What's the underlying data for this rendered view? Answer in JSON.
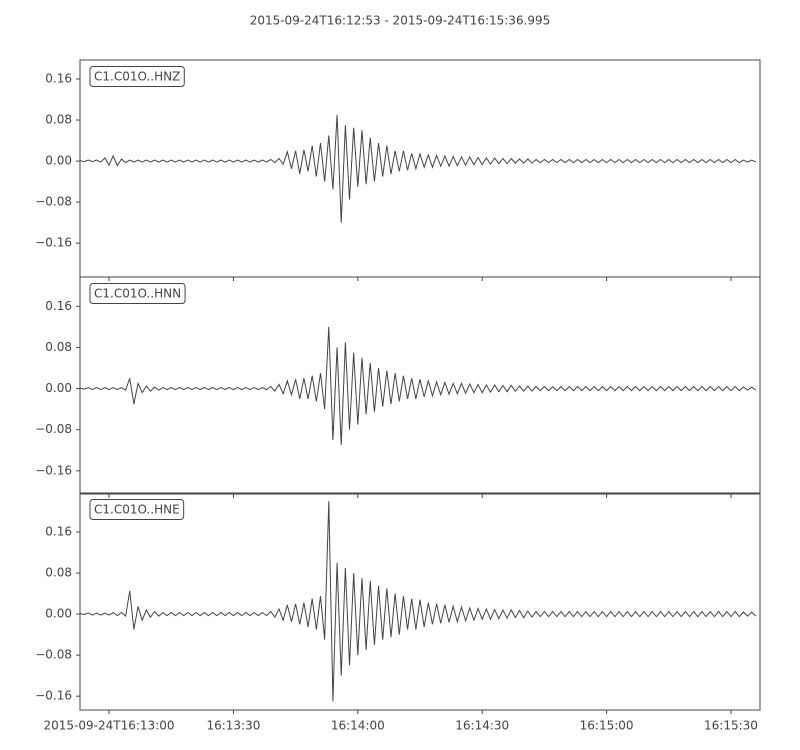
{
  "chart_data": {
    "type": "line",
    "title": "2015-09-24T16:12:53  -  2015-09-24T16:15:36.995",
    "color": "#444444",
    "xlim": [
      0,
      163.995
    ],
    "xticks": [
      {
        "value": 7,
        "label": "2015-09-24T16:13:00"
      },
      {
        "value": 37,
        "label": "16:13:30"
      },
      {
        "value": 67,
        "label": "16:14:00"
      },
      {
        "value": 97,
        "label": "16:14:30"
      },
      {
        "value": 127,
        "label": "16:15:00"
      },
      {
        "value": 157,
        "label": "16:15:30"
      }
    ],
    "x": [
      0,
      1,
      2,
      3,
      4,
      5,
      6,
      7,
      8,
      9,
      10,
      11,
      12,
      13,
      14,
      15,
      16,
      17,
      18,
      19,
      20,
      21,
      22,
      23,
      24,
      25,
      26,
      27,
      28,
      29,
      30,
      31,
      32,
      33,
      34,
      35,
      36,
      37,
      38,
      39,
      40,
      41,
      42,
      43,
      44,
      45,
      46,
      47,
      48,
      49,
      50,
      51,
      52,
      53,
      54,
      55,
      56,
      57,
      58,
      59,
      60,
      61,
      62,
      63,
      64,
      65,
      66,
      67,
      68,
      69,
      70,
      71,
      72,
      73,
      74,
      75,
      76,
      77,
      78,
      79,
      80,
      81,
      82,
      83,
      84,
      85,
      86,
      87,
      88,
      89,
      90,
      91,
      92,
      93,
      94,
      95,
      96,
      97,
      98,
      99,
      100,
      101,
      102,
      103,
      104,
      105,
      106,
      107,
      108,
      109,
      110,
      111,
      112,
      113,
      114,
      115,
      116,
      117,
      118,
      119,
      120,
      121,
      122,
      123,
      124,
      125,
      126,
      127,
      128,
      129,
      130,
      131,
      132,
      133,
      134,
      135,
      136,
      137,
      138,
      139,
      140,
      141,
      142,
      143,
      144,
      145,
      146,
      147,
      148,
      149,
      150,
      151,
      152,
      153,
      154,
      155,
      156,
      157,
      158,
      159,
      160,
      161,
      162,
      163
    ],
    "panels": [
      {
        "name": "C1.C01O..HNZ",
        "ylim": [
          -0.226,
          0.197
        ],
        "yticks": [
          {
            "value": 0.16,
            "label": "0.16"
          },
          {
            "value": 0.08,
            "label": "0.08"
          },
          {
            "value": 0,
            "label": "0.00"
          },
          {
            "value": -0.08,
            "label": "−0.08"
          },
          {
            "value": -0.16,
            "label": "−0.16"
          }
        ],
        "values": [
          0.001,
          -0.001,
          0.002,
          -0.001,
          0.002,
          -0.002,
          0.006,
          -0.008,
          0.01,
          -0.009,
          0.004,
          -0.003,
          0.002,
          -0.002,
          0.002,
          -0.002,
          0.002,
          -0.002,
          0.002,
          -0.002,
          0.002,
          -0.002,
          0.002,
          -0.002,
          0.002,
          -0.002,
          0.002,
          -0.002,
          0.002,
          -0.002,
          0.002,
          -0.002,
          0.002,
          -0.002,
          0.002,
          -0.002,
          0.002,
          -0.002,
          0.002,
          -0.002,
          0.002,
          -0.002,
          0.002,
          -0.002,
          0.002,
          -0.002,
          0.003,
          -0.003,
          0.005,
          -0.006,
          0.018,
          -0.015,
          0.02,
          -0.025,
          0.022,
          -0.02,
          0.03,
          -0.03,
          0.035,
          -0.04,
          0.05,
          -0.055,
          0.09,
          -0.12,
          0.07,
          -0.075,
          0.065,
          -0.05,
          0.06,
          -0.045,
          0.045,
          -0.04,
          0.035,
          -0.03,
          0.03,
          -0.025,
          0.02,
          -0.02,
          0.02,
          -0.018,
          0.015,
          -0.015,
          0.014,
          -0.012,
          0.012,
          -0.012,
          0.011,
          -0.01,
          0.01,
          -0.01,
          0.009,
          -0.009,
          0.008,
          -0.008,
          0.008,
          -0.007,
          0.007,
          -0.007,
          0.006,
          -0.006,
          0.006,
          -0.005,
          0.005,
          -0.005,
          0.005,
          -0.004,
          0.004,
          -0.004,
          0.004,
          -0.004,
          0.003,
          -0.003,
          0.003,
          -0.003,
          0.003,
          -0.003,
          0.003,
          -0.003,
          0.003,
          -0.003,
          0.003,
          -0.003,
          0.003,
          -0.003,
          0.003,
          -0.003,
          0.003,
          -0.003,
          0.003,
          -0.003,
          0.003,
          -0.003,
          0.003,
          -0.003,
          0.003,
          -0.003,
          0.003,
          -0.003,
          0.003,
          -0.003,
          0.003,
          -0.003,
          0.003,
          -0.003,
          0.003,
          -0.003,
          0.003,
          -0.003,
          0.003,
          -0.003,
          0.003,
          -0.003,
          0.003,
          -0.003,
          0.003,
          -0.003,
          0.003,
          -0.003,
          0.003,
          -0.003,
          0.002,
          -0.002,
          0.002,
          -0.002
        ]
      },
      {
        "name": "C1.C01O..HNN",
        "ylim": [
          -0.205,
          0.217
        ],
        "yticks": [
          {
            "value": 0.16,
            "label": "0.16"
          },
          {
            "value": 0.08,
            "label": "0.08"
          },
          {
            "value": 0,
            "label": "0.00"
          },
          {
            "value": -0.08,
            "label": "−0.08"
          },
          {
            "value": -0.16,
            "label": "−0.16"
          }
        ],
        "values": [
          0.001,
          -0.001,
          0.002,
          -0.002,
          0.002,
          -0.002,
          0.002,
          -0.002,
          0.002,
          -0.002,
          0.002,
          -0.003,
          0.02,
          -0.03,
          0.01,
          -0.008,
          0.005,
          -0.005,
          0.003,
          -0.003,
          0.002,
          -0.002,
          0.002,
          -0.002,
          0.002,
          -0.002,
          0.002,
          -0.002,
          0.002,
          -0.002,
          0.002,
          -0.002,
          0.002,
          -0.002,
          0.002,
          -0.002,
          0.002,
          -0.002,
          0.002,
          -0.002,
          0.002,
          -0.002,
          0.002,
          -0.002,
          0.002,
          -0.002,
          0.004,
          -0.005,
          0.008,
          -0.01,
          0.015,
          -0.012,
          0.018,
          -0.02,
          0.02,
          -0.02,
          0.025,
          -0.025,
          0.03,
          -0.04,
          0.12,
          -0.1,
          0.08,
          -0.11,
          0.09,
          -0.08,
          0.07,
          -0.07,
          0.06,
          -0.05,
          0.05,
          -0.045,
          0.04,
          -0.035,
          0.035,
          -0.03,
          0.03,
          -0.025,
          0.025,
          -0.02,
          0.02,
          -0.02,
          0.018,
          -0.016,
          0.015,
          -0.014,
          0.013,
          -0.012,
          0.012,
          -0.011,
          0.01,
          -0.01,
          0.01,
          -0.009,
          0.009,
          -0.008,
          0.008,
          -0.008,
          0.007,
          -0.007,
          0.007,
          -0.006,
          0.006,
          -0.006,
          0.006,
          -0.005,
          0.005,
          -0.005,
          0.005,
          -0.005,
          0.004,
          -0.004,
          0.004,
          -0.004,
          0.004,
          -0.004,
          0.004,
          -0.004,
          0.004,
          -0.004,
          0.004,
          -0.004,
          0.004,
          -0.004,
          0.004,
          -0.004,
          0.004,
          -0.004,
          0.004,
          -0.004,
          0.004,
          -0.004,
          0.004,
          -0.004,
          0.004,
          -0.004,
          0.004,
          -0.004,
          0.004,
          -0.004,
          0.004,
          -0.004,
          0.004,
          -0.004,
          0.004,
          -0.004,
          0.004,
          -0.004,
          0.004,
          -0.004,
          0.004,
          -0.004,
          0.004,
          -0.004,
          0.004,
          -0.004,
          0.004,
          -0.004,
          0.004,
          -0.004,
          0.003,
          -0.003,
          0.003,
          -0.003
        ]
      },
      {
        "name": "C1.C01O..HNE",
        "ylim": [
          -0.187,
          0.236
        ],
        "yticks": [
          {
            "value": 0.16,
            "label": "0.16"
          },
          {
            "value": 0.08,
            "label": "0.08"
          },
          {
            "value": 0,
            "label": "0.00"
          },
          {
            "value": -0.08,
            "label": "−0.08"
          },
          {
            "value": -0.16,
            "label": "−0.16"
          }
        ],
        "values": [
          0.001,
          -0.001,
          0.002,
          -0.002,
          0.002,
          -0.002,
          0.002,
          -0.002,
          0.003,
          -0.003,
          0.003,
          -0.004,
          0.045,
          -0.03,
          0.015,
          -0.012,
          0.008,
          -0.006,
          0.005,
          -0.004,
          0.003,
          -0.003,
          0.003,
          -0.003,
          0.003,
          -0.003,
          0.003,
          -0.003,
          0.003,
          -0.003,
          0.003,
          -0.003,
          0.003,
          -0.003,
          0.003,
          -0.003,
          0.003,
          -0.003,
          0.003,
          -0.003,
          0.003,
          -0.003,
          0.003,
          -0.003,
          0.003,
          -0.003,
          0.005,
          -0.006,
          0.01,
          -0.012,
          0.018,
          -0.015,
          0.02,
          -0.02,
          0.022,
          -0.025,
          0.03,
          -0.03,
          0.035,
          -0.05,
          0.22,
          -0.17,
          0.1,
          -0.12,
          0.09,
          -0.1,
          0.08,
          -0.08,
          0.07,
          -0.07,
          0.065,
          -0.06,
          0.055,
          -0.05,
          0.05,
          -0.045,
          0.04,
          -0.04,
          0.035,
          -0.03,
          0.03,
          -0.03,
          0.028,
          -0.025,
          0.022,
          -0.02,
          0.02,
          -0.018,
          0.018,
          -0.016,
          0.015,
          -0.015,
          0.014,
          -0.013,
          0.012,
          -0.012,
          0.011,
          -0.01,
          0.01,
          -0.01,
          0.009,
          -0.009,
          0.008,
          -0.008,
          0.008,
          -0.007,
          0.007,
          -0.007,
          0.006,
          -0.006,
          0.005,
          -0.005,
          0.005,
          -0.005,
          0.005,
          -0.005,
          0.005,
          -0.005,
          0.005,
          -0.005,
          0.005,
          -0.005,
          0.005,
          -0.005,
          0.005,
          -0.005,
          0.005,
          -0.005,
          0.005,
          -0.005,
          0.005,
          -0.005,
          0.005,
          -0.005,
          0.005,
          -0.005,
          0.005,
          -0.005,
          0.005,
          -0.005,
          0.005,
          -0.005,
          0.005,
          -0.005,
          0.005,
          -0.005,
          0.005,
          -0.005,
          0.005,
          -0.005,
          0.005,
          -0.005,
          0.005,
          -0.005,
          0.005,
          -0.005,
          0.005,
          -0.005,
          0.005,
          -0.005,
          0.004,
          -0.004,
          0.004,
          -0.004
        ]
      }
    ]
  }
}
